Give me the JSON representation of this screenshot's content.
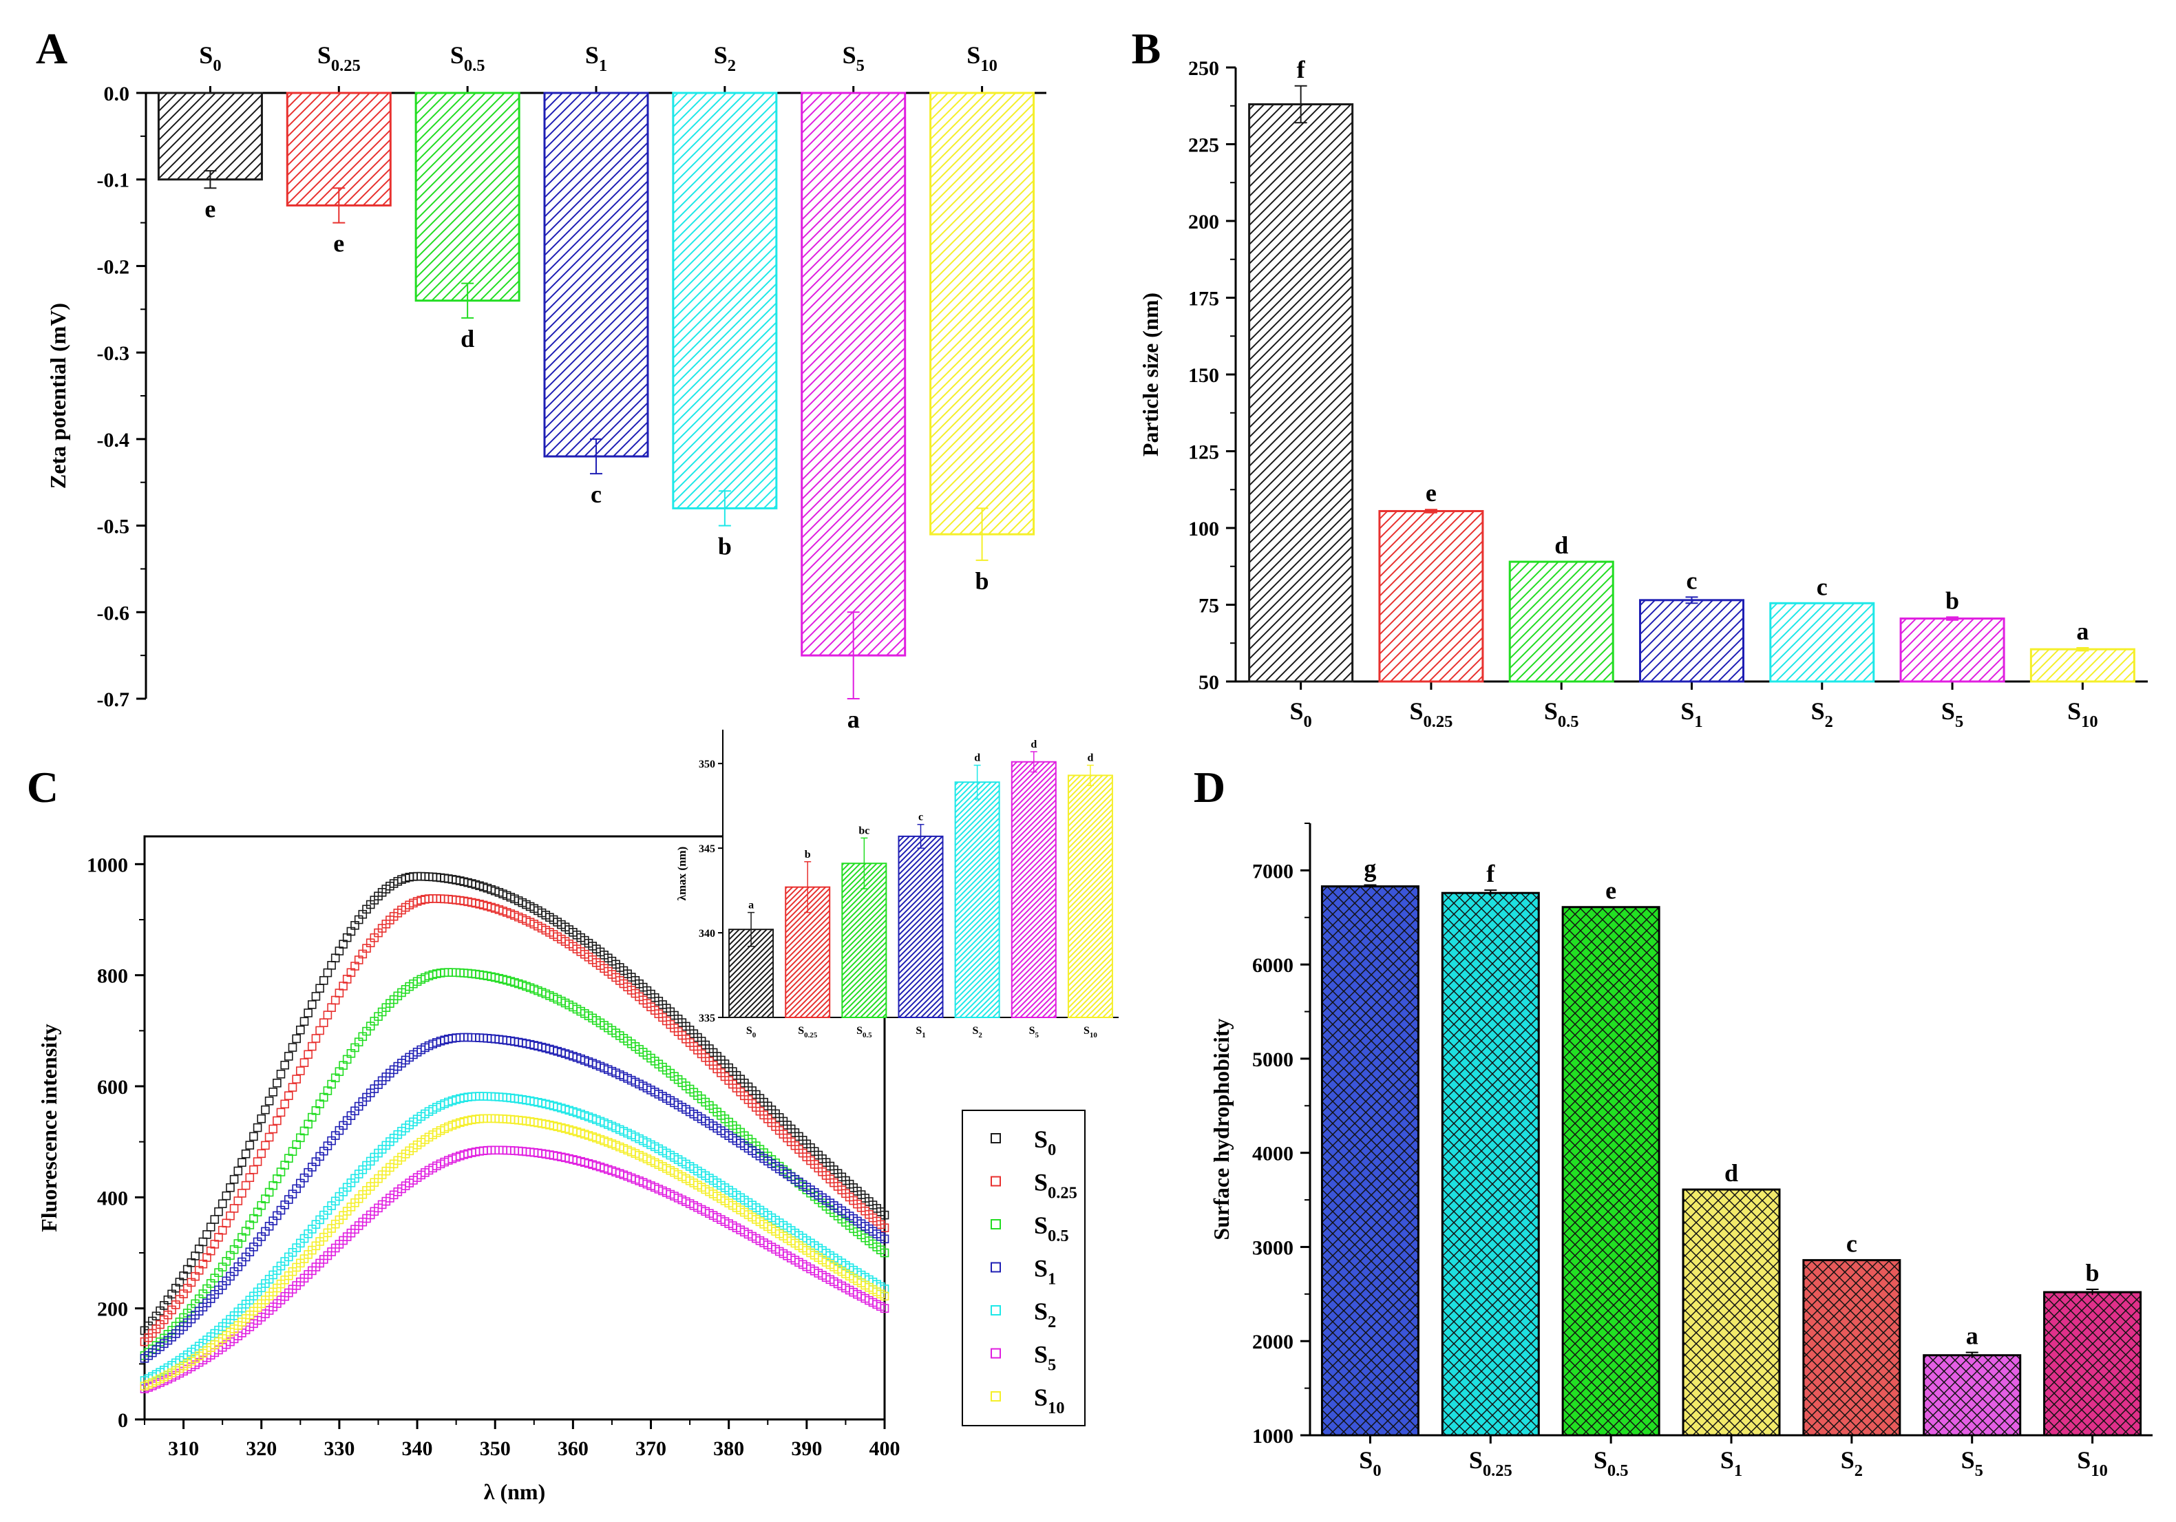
{
  "colors": {
    "black": "#1a1a1a",
    "red": "#e8312f",
    "green": "#22dd22",
    "blue": "#1f1fb4",
    "cyan": "#1ee8e8",
    "magenta": "#e01ee0",
    "yellow": "#f5ef2a"
  },
  "chart_data": [
    {
      "panel": "A",
      "type": "bar",
      "title": "",
      "xlabel": "",
      "ylabel": "Zeta potential (mV)",
      "ylim": [
        -0.7,
        0.0
      ],
      "yticks": [
        "0.0",
        "-0.1",
        "-0.2",
        "-0.3",
        "-0.4",
        "-0.5",
        "-0.6",
        "-0.7"
      ],
      "categories": [
        {
          "base": "S",
          "sub": "0"
        },
        {
          "base": "S",
          "sub": "0.25"
        },
        {
          "base": "S",
          "sub": "0.5"
        },
        {
          "base": "S",
          "sub": "1"
        },
        {
          "base": "S",
          "sub": "2"
        },
        {
          "base": "S",
          "sub": "5"
        },
        {
          "base": "S",
          "sub": "10"
        }
      ],
      "values": [
        -0.1,
        -0.13,
        -0.24,
        -0.42,
        -0.48,
        -0.65,
        -0.51
      ],
      "errors": [
        0.01,
        0.02,
        0.02,
        0.02,
        0.02,
        0.05,
        0.03
      ],
      "letters": [
        "e",
        "e",
        "d",
        "c",
        "b",
        "a",
        "b"
      ],
      "colors": [
        "black",
        "red",
        "green",
        "blue",
        "cyan",
        "magenta",
        "yellow"
      ]
    },
    {
      "panel": "B",
      "type": "bar",
      "title": "",
      "xlabel": "",
      "ylabel": "Particle size (nm)",
      "ylim": [
        50,
        250
      ],
      "yticks": [
        "50",
        "75",
        "100",
        "125",
        "150",
        "175",
        "200",
        "225",
        "250"
      ],
      "categories": [
        {
          "base": "S",
          "sub": "0"
        },
        {
          "base": "S",
          "sub": "0.25"
        },
        {
          "base": "S",
          "sub": "0.5"
        },
        {
          "base": "S",
          "sub": "1"
        },
        {
          "base": "S",
          "sub": "2"
        },
        {
          "base": "S",
          "sub": "5"
        },
        {
          "base": "S",
          "sub": "10"
        }
      ],
      "values": [
        238,
        105.5,
        89,
        76.5,
        75.5,
        70.5,
        60.5
      ],
      "errors": [
        6,
        0.5,
        0,
        1,
        0,
        0.5,
        0.5
      ],
      "letters": [
        "f",
        "e",
        "d",
        "c",
        "c",
        "b",
        "a"
      ],
      "colors": [
        "black",
        "red",
        "green",
        "blue",
        "cyan",
        "magenta",
        "yellow"
      ]
    },
    {
      "panel": "C",
      "type": "scatter",
      "title": "",
      "xlabel": "λ (nm)",
      "ylabel": "Fluorescence intensity",
      "xlim": [
        305,
        400
      ],
      "ylim": [
        0,
        1050
      ],
      "xticks": [
        "310",
        "320",
        "330",
        "340",
        "350",
        "360",
        "370",
        "380",
        "390",
        "400"
      ],
      "yticks": [
        "0",
        "200",
        "400",
        "600",
        "800",
        "1000"
      ],
      "legend_position": "right",
      "series": [
        {
          "name": {
            "base": "S",
            "sub": "0"
          },
          "color": "black",
          "peak_x": 340,
          "peak_y": 978,
          "start_y": 160,
          "end_y": 368
        },
        {
          "name": {
            "base": "S",
            "sub": "0.25"
          },
          "color": "red",
          "peak_x": 342,
          "peak_y": 938,
          "start_y": 140,
          "end_y": 345
        },
        {
          "name": {
            "base": "S",
            "sub": "0.5"
          },
          "color": "green",
          "peak_x": 344,
          "peak_y": 805,
          "start_y": 115,
          "end_y": 300
        },
        {
          "name": {
            "base": "S",
            "sub": "1"
          },
          "color": "blue",
          "peak_x": 346,
          "peak_y": 688,
          "start_y": 110,
          "end_y": 325
        },
        {
          "name": {
            "base": "S",
            "sub": "2"
          },
          "color": "cyan",
          "peak_x": 348,
          "peak_y": 582,
          "start_y": 70,
          "end_y": 235
        },
        {
          "name": {
            "base": "S",
            "sub": "5"
          },
          "color": "magenta",
          "peak_x": 350,
          "peak_y": 485,
          "start_y": 55,
          "end_y": 200
        },
        {
          "name": {
            "base": "S",
            "sub": "10"
          },
          "color": "yellow",
          "peak_x": 349,
          "peak_y": 542,
          "start_y": 60,
          "end_y": 222
        }
      ],
      "inset": {
        "type": "bar",
        "ylabel": "λmax (nm)",
        "ylim": [
          335,
          352
        ],
        "yticks": [
          "335",
          "340",
          "345",
          "350"
        ],
        "categories": [
          {
            "base": "S",
            "sub": "0"
          },
          {
            "base": "S",
            "sub": "0.25"
          },
          {
            "base": "S",
            "sub": "0.5"
          },
          {
            "base": "S",
            "sub": "1"
          },
          {
            "base": "S",
            "sub": "2"
          },
          {
            "base": "S",
            "sub": "5"
          },
          {
            "base": "S",
            "sub": "10"
          }
        ],
        "values": [
          340.2,
          342.7,
          344.1,
          345.7,
          348.9,
          350.1,
          349.3
        ],
        "errors": [
          1.0,
          1.5,
          1.5,
          0.7,
          1.0,
          0.6,
          0.6
        ],
        "letters": [
          "a",
          "b",
          "bc",
          "c",
          "d",
          "d",
          "d"
        ],
        "colors": [
          "black",
          "red",
          "green",
          "blue",
          "cyan",
          "magenta",
          "yellow"
        ]
      }
    },
    {
      "panel": "D",
      "type": "bar",
      "title": "",
      "xlabel": "",
      "ylabel": "Surface hydrophobicity",
      "ylim": [
        1000,
        7500
      ],
      "yticks": [
        "1000",
        "2000",
        "3000",
        "4000",
        "5000",
        "6000",
        "7000"
      ],
      "categories": [
        {
          "base": "S",
          "sub": "0"
        },
        {
          "base": "S",
          "sub": "0.25"
        },
        {
          "base": "S",
          "sub": "0.5"
        },
        {
          "base": "S",
          "sub": "1"
        },
        {
          "base": "S",
          "sub": "2"
        },
        {
          "base": "S",
          "sub": "5"
        },
        {
          "base": "S",
          "sub": "10"
        }
      ],
      "values": [
        6830,
        6760,
        6610,
        3610,
        2860,
        1850,
        2520
      ],
      "errors": [
        15,
        30,
        0,
        0,
        0,
        30,
        30
      ],
      "letters": [
        "g",
        "f",
        "e",
        "d",
        "c",
        "a",
        "b"
      ],
      "colors": [
        "#3b55d9",
        "#1ee0e0",
        "#22e022",
        "#f2ea6a",
        "#e85a5a",
        "#e45ee4",
        "#e0308a"
      ]
    }
  ]
}
